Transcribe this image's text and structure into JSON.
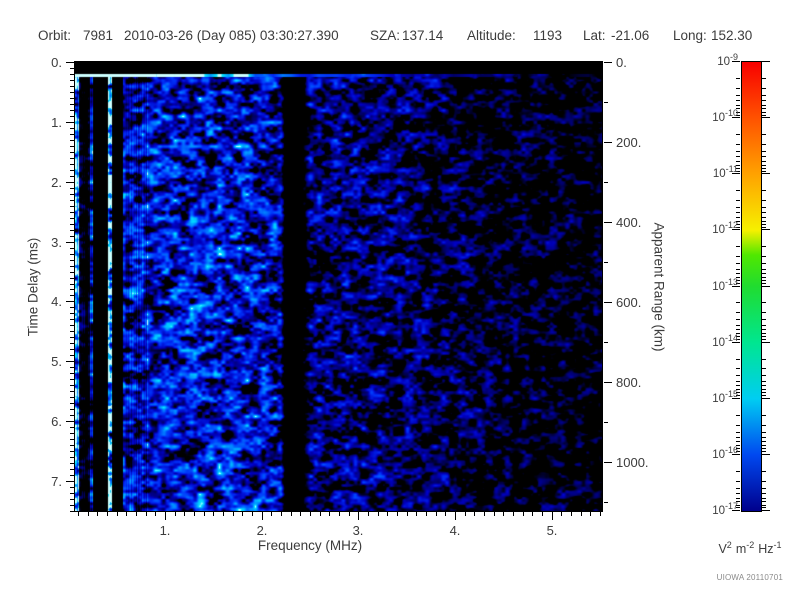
{
  "header": {
    "orbit_label": "Orbit:",
    "orbit_value": "7981",
    "datetime": "2010-03-26 (Day 085) 03:30:27.390",
    "sza_label": "SZA:",
    "sza_value": "137.14",
    "altitude_label": "Altitude:",
    "altitude_value": "1193",
    "lat_label": "Lat:",
    "lat_value": "-21.06",
    "long_label": "Long:",
    "long_value": "152.30"
  },
  "credit": "UIOWA 20110701",
  "chart_data": {
    "type": "heatmap",
    "title": "",
    "xlabel": "Frequency (MHz)",
    "ylabel_left": "Time Delay (ms)",
    "ylabel_right": "Apparent Range (km)",
    "x_axis": {
      "lim": [
        0.07,
        5.52
      ],
      "major_ticks": [
        1,
        2,
        3,
        4,
        5
      ],
      "major_labels": [
        "1.",
        "2.",
        "3.",
        "4.",
        "5."
      ],
      "minor_step": 0.1
    },
    "y_axis_left": {
      "lim": [
        0,
        7.5
      ],
      "major_ticks": [
        0,
        1,
        2,
        3,
        4,
        5,
        6,
        7
      ],
      "major_labels": [
        "0.",
        "1.",
        "2.",
        "3.",
        "4.",
        "5.",
        "6.",
        "7."
      ],
      "minor_step": 0.1
    },
    "y_axis_right": {
      "lim": [
        0,
        1122
      ],
      "major_ticks": [
        0,
        200,
        400,
        600,
        800,
        1000
      ],
      "major_labels": [
        "0.",
        "200.",
        "400.",
        "600.",
        "800.",
        "1000."
      ],
      "minor_step": 100
    },
    "colorbar": {
      "scale": "log",
      "range_exponents": [
        -9,
        -17
      ],
      "ticks": [
        {
          "base": "10",
          "exp": "-9"
        },
        {
          "base": "10",
          "exp": "-10"
        },
        {
          "base": "10",
          "exp": "-11"
        },
        {
          "base": "10",
          "exp": "-12"
        },
        {
          "base": "10",
          "exp": "-13"
        },
        {
          "base": "10",
          "exp": "-14"
        },
        {
          "base": "10",
          "exp": "-15"
        },
        {
          "base": "10",
          "exp": "-16"
        },
        {
          "base": "10",
          "exp": "-17"
        }
      ],
      "unit": {
        "v": "V",
        "v_exp": "2",
        "m": "m",
        "m_exp": "-2",
        "hz": "Hz",
        "hz_exp": "-1"
      },
      "gradient_stops": [
        [
          0,
          "#f80000"
        ],
        [
          0.125,
          "#ff5200"
        ],
        [
          0.25,
          "#ffa200"
        ],
        [
          0.375,
          "#f6f000"
        ],
        [
          0.43,
          "#50e800"
        ],
        [
          0.5,
          "#20dc30"
        ],
        [
          0.625,
          "#00e690"
        ],
        [
          0.75,
          "#00cdf2"
        ],
        [
          0.875,
          "#0048f0"
        ],
        [
          1,
          "#00008c"
        ]
      ]
    },
    "spectrogram": {
      "description": "Blue noise-floor ionogram: bright surface echo line at 0.25 ms, receiver blackout above 0.2 ms, dead band at 2.26-2.38 MHz, interference stripes below 0.8 MHz, noise fading toward 5.5 MHz",
      "seed": 20110701,
      "blackout_top_ms": 0.2,
      "echo_line_ms": 0.25,
      "dead_band_mhz": [
        2.26,
        2.38
      ],
      "envelope": [
        [
          0.07,
          0.92
        ],
        [
          0.8,
          0.9
        ],
        [
          1.3,
          0.95
        ],
        [
          2.2,
          0.88
        ],
        [
          2.26,
          0.04
        ],
        [
          2.38,
          0.04
        ],
        [
          2.5,
          0.74
        ],
        [
          3.0,
          0.7
        ],
        [
          3.6,
          0.62
        ],
        [
          4.2,
          0.54
        ],
        [
          4.8,
          0.5
        ],
        [
          5.52,
          0.46
        ]
      ],
      "stripe_overrides": [
        [
          0,
          3,
          1.5
        ],
        [
          4,
          14,
          0.5
        ],
        [
          15,
          17,
          0.95
        ],
        [
          18,
          32,
          0.2
        ],
        [
          33,
          36,
          1.75
        ],
        [
          37,
          47,
          0.25
        ],
        [
          48,
          72,
          1.0
        ]
      ],
      "noise": {
        "cell1": [
          9,
          6
        ],
        "cell2": [
          4,
          3
        ],
        "w1": 0.6,
        "w2": 0.4,
        "threshold": 0.25,
        "gain": 1.6
      },
      "colormap": [
        [
          0,
          "#000000"
        ],
        [
          0.12,
          "#000060"
        ],
        [
          0.3,
          "#0000c0"
        ],
        [
          0.5,
          "#0030f8"
        ],
        [
          0.68,
          "#0070ff"
        ],
        [
          0.84,
          "#00b4ff"
        ],
        [
          0.94,
          "#00e4ff"
        ],
        [
          1,
          "#ccffff"
        ]
      ]
    }
  }
}
